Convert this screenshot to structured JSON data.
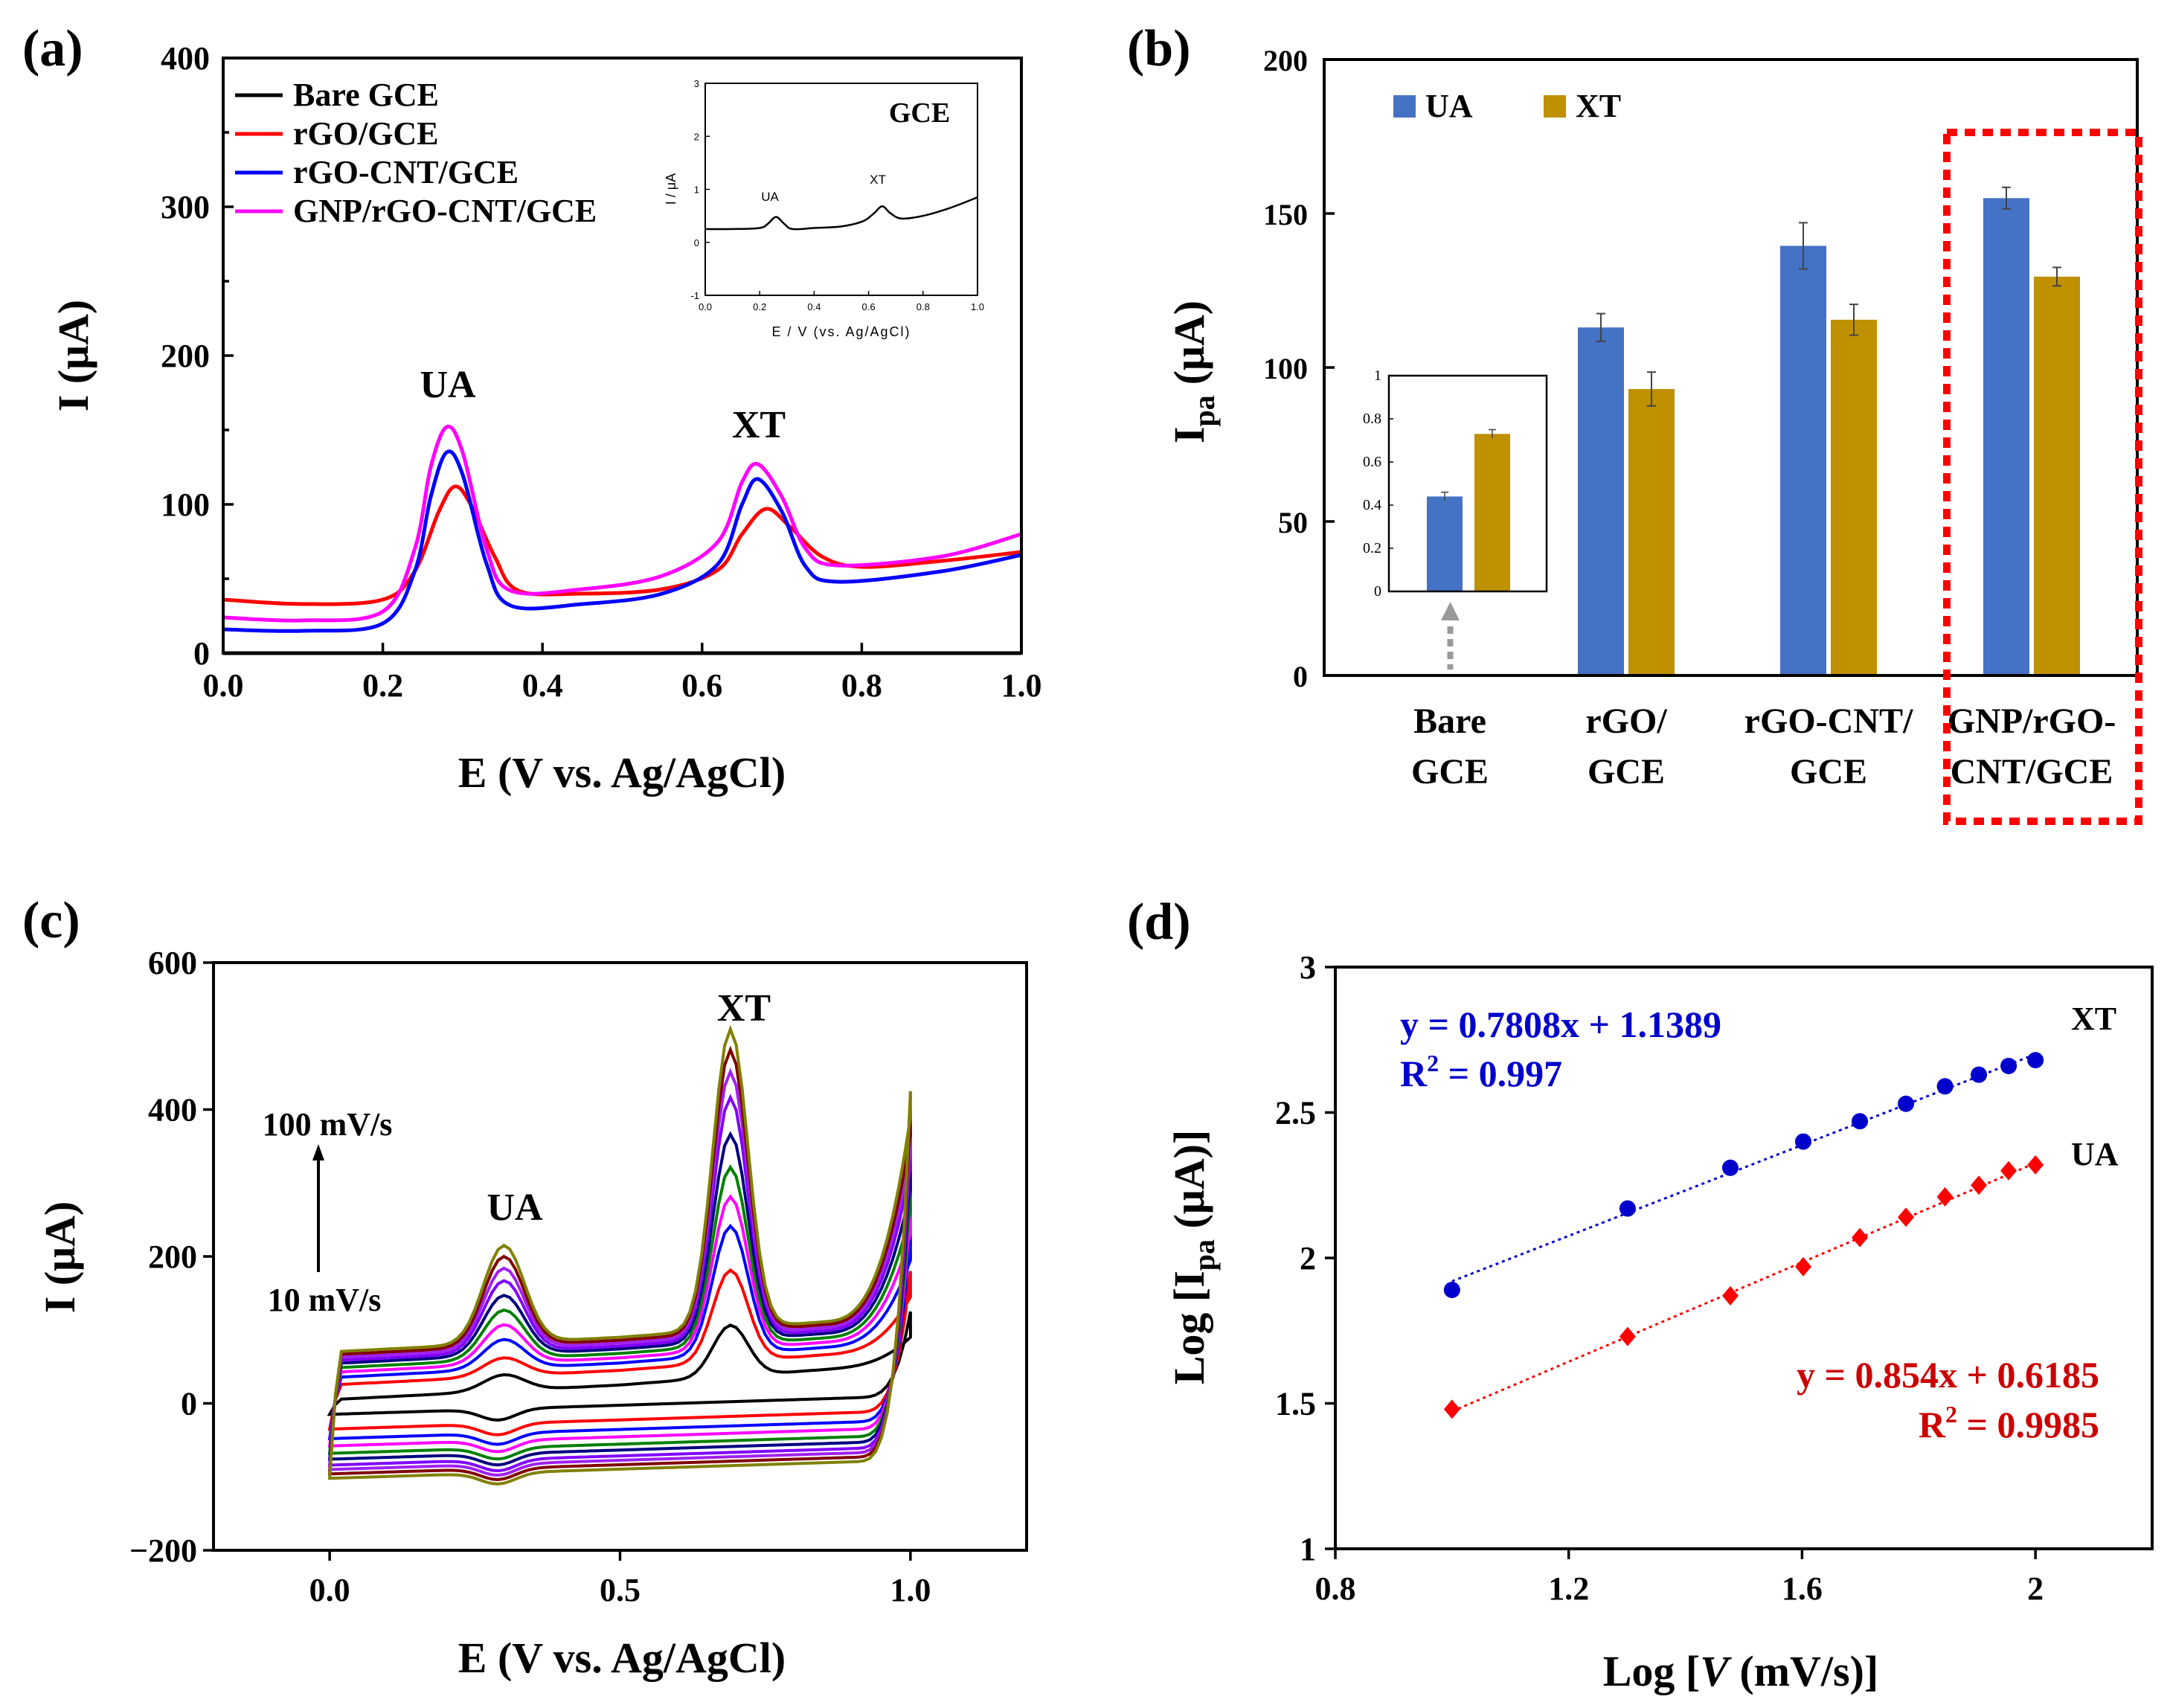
{
  "panels": {
    "a": {
      "label": "(a)"
    },
    "b": {
      "label": "(b)"
    },
    "c": {
      "label": "(c)"
    },
    "d": {
      "label": "(d)"
    }
  },
  "chart_data": [
    {
      "panel": "a",
      "type": "line",
      "title": "",
      "xlabel": "E (V vs. Ag/AgCl)",
      "ylabel": "I (μA)",
      "xlim": [
        0,
        1
      ],
      "ylim": [
        0,
        400
      ],
      "xticks": [
        "0.0",
        "0.2",
        "0.4",
        "0.6",
        "0.8",
        "1.0"
      ],
      "yticks": [
        "0",
        "100",
        "200",
        "300",
        "400"
      ],
      "legend_position": "top-left",
      "annotations": [
        "UA",
        "XT"
      ],
      "series": [
        {
          "name": "Bare GCE",
          "color": "#000000",
          "x": [
            0,
            0.2,
            0.4,
            0.6,
            0.8,
            1.0
          ],
          "y": [
            0,
            0,
            0,
            0,
            0,
            0
          ]
        },
        {
          "name": "rGO/GCE",
          "color": "#ff0000",
          "x": [
            0,
            0.1,
            0.2,
            0.24,
            0.27,
            0.29,
            0.31,
            0.34,
            0.37,
            0.45,
            0.55,
            0.62,
            0.65,
            0.68,
            0.71,
            0.75,
            0.8,
            0.9,
            1.0
          ],
          "y": [
            36,
            33,
            36,
            55,
            95,
            112,
            100,
            65,
            42,
            40,
            43,
            56,
            80,
            97,
            85,
            65,
            58,
            62,
            68
          ]
        },
        {
          "name": "rGO-CNT/GCE",
          "color": "#0000ff",
          "x": [
            0,
            0.1,
            0.2,
            0.24,
            0.26,
            0.28,
            0.3,
            0.33,
            0.36,
            0.45,
            0.55,
            0.62,
            0.65,
            0.67,
            0.7,
            0.73,
            0.77,
            0.9,
            1.0
          ],
          "y": [
            16,
            15,
            20,
            55,
            105,
            135,
            120,
            60,
            32,
            33,
            40,
            60,
            100,
            117,
            95,
            58,
            48,
            55,
            66
          ]
        },
        {
          "name": "GNP/rGO-CNT/GCE",
          "color": "#ff00ff",
          "x": [
            0,
            0.1,
            0.2,
            0.24,
            0.26,
            0.28,
            0.3,
            0.33,
            0.36,
            0.45,
            0.55,
            0.62,
            0.65,
            0.67,
            0.7,
            0.73,
            0.77,
            0.9,
            1.0
          ],
          "y": [
            24,
            22,
            28,
            70,
            125,
            152,
            135,
            70,
            42,
            43,
            52,
            75,
            115,
            127,
            105,
            70,
            59,
            65,
            80
          ]
        }
      ],
      "inset": {
        "type": "line",
        "title": "GCE",
        "xlabel": "E / V (vs. Ag/AgCl)",
        "ylabel": "I / μA",
        "xlim": [
          0,
          1
        ],
        "ylim": [
          -1,
          3
        ],
        "xticks": [
          "0.0",
          "0.2",
          "0.4",
          "0.6",
          "0.8",
          "1.0"
        ],
        "yticks": [
          "-1",
          "0",
          "1",
          "2",
          "3"
        ],
        "annotations": [
          "UA",
          "XT"
        ],
        "x": [
          0,
          0.1,
          0.2,
          0.23,
          0.26,
          0.29,
          0.32,
          0.4,
          0.5,
          0.58,
          0.62,
          0.65,
          0.68,
          0.72,
          0.8,
          0.9,
          1.0
        ],
        "y": [
          0.25,
          0.25,
          0.27,
          0.35,
          0.48,
          0.35,
          0.25,
          0.27,
          0.3,
          0.4,
          0.55,
          0.68,
          0.55,
          0.45,
          0.5,
          0.65,
          0.85
        ]
      }
    },
    {
      "panel": "b",
      "type": "bar",
      "title": "",
      "xlabel": "",
      "ylabel": "I",
      "ylabel_sub": "pa",
      "ylabel_unit": "(μA)",
      "ylim": [
        0,
        200
      ],
      "yticks": [
        "0",
        "50",
        "100",
        "150",
        "200"
      ],
      "categories": [
        [
          "Bare",
          "GCE"
        ],
        [
          "rGO/",
          "GCE"
        ],
        [
          "rGO-CNT/",
          "GCE"
        ],
        [
          "GNP/rGO-",
          "CNT/GCE"
        ]
      ],
      "series": [
        {
          "name": "UA",
          "color": "#4472c4",
          "values": [
            0.44,
            113,
            139.5,
            155
          ],
          "errors": [
            0.02,
            4.5,
            7.5,
            3.5
          ]
        },
        {
          "name": "XT",
          "color": "#bf9000",
          "values": [
            0.73,
            93,
            115.5,
            129.5
          ],
          "errors": [
            0.02,
            5.5,
            5,
            3
          ]
        }
      ],
      "legend_position": "top-left",
      "highlight_category": 3,
      "inset": {
        "type": "bar",
        "ylim": [
          0,
          1
        ],
        "yticks": [
          "0",
          "0.2",
          "0.4",
          "0.6",
          "0.8",
          "1"
        ],
        "values": [
          0.44,
          0.73
        ],
        "errors": [
          0.02,
          0.02
        ]
      }
    },
    {
      "panel": "c",
      "type": "line",
      "title": "",
      "xlabel": "E (V vs. Ag/AgCl)",
      "ylabel": "I (μA)",
      "xlim": [
        -0.2,
        1.2
      ],
      "ylim": [
        -200,
        600
      ],
      "xticks": [
        "0.0",
        "0.5",
        "1.0"
      ],
      "yticks": [
        "−200",
        "0",
        "200",
        "400",
        "600"
      ],
      "annotations": [
        "UA",
        "XT",
        "100 mV/s",
        "10 mV/s"
      ],
      "scan_rates_mV_s": [
        10,
        20,
        30,
        40,
        50,
        60,
        70,
        80,
        90,
        100
      ],
      "colors": [
        "#000000",
        "#ff0000",
        "#0000ff",
        "#ff00ff",
        "#008000",
        "#000080",
        "#8000ff",
        "#a020f0",
        "#800000",
        "#808000"
      ],
      "ua_peak": [
        27,
        50,
        75,
        95,
        115,
        135,
        155,
        172,
        188,
        203
      ],
      "xt_peak": [
        75,
        150,
        210,
        250,
        290,
        335,
        385,
        420,
        450,
        478
      ],
      "anodic_baseline": [
        5,
        25,
        35,
        42,
        48,
        54,
        58,
        62,
        66,
        70
      ],
      "cathodic_baseline": [
        -15,
        -35,
        -48,
        -58,
        -68,
        -76,
        -84,
        -90,
        -96,
        -102
      ],
      "end_current": [
        100,
        155,
        205,
        240,
        270,
        300,
        330,
        350,
        375,
        400
      ]
    },
    {
      "panel": "d",
      "type": "scatter",
      "title": "",
      "xlabel": "Log [V (mV/s)]",
      "ylabel": "Log [Ipa (μA)]",
      "xlim": [
        0.8,
        2.2
      ],
      "ylim": [
        1,
        3
      ],
      "xticks": [
        "0.8",
        "1.2",
        "1.6",
        "2"
      ],
      "yticks": [
        "1",
        "1.5",
        "2",
        "2.5",
        "3"
      ],
      "series": [
        {
          "name": "XT",
          "color": "#0000cc",
          "marker": "circle",
          "x": [
            1.0,
            1.301,
            1.477,
            1.602,
            1.699,
            1.778,
            1.845,
            1.903,
            1.954,
            2.0
          ],
          "y": [
            1.89,
            2.17,
            2.31,
            2.4,
            2.47,
            2.53,
            2.59,
            2.63,
            2.66,
            2.68
          ],
          "fit": {
            "slope": 0.7808,
            "intercept": 1.1389
          },
          "equation": "y = 0.7808x + 1.1389",
          "r2_label": "R",
          "r2_value": " = 0.997"
        },
        {
          "name": "UA",
          "color": "#ff0000",
          "marker": "diamond",
          "x": [
            1.0,
            1.301,
            1.477,
            1.602,
            1.699,
            1.778,
            1.845,
            1.903,
            1.954,
            2.0
          ],
          "y": [
            1.48,
            1.73,
            1.87,
            1.97,
            2.07,
            2.14,
            2.21,
            2.25,
            2.3,
            2.32
          ],
          "fit": {
            "slope": 0.854,
            "intercept": 0.6185
          },
          "equation": "y = 0.854x + 0.6185",
          "r2_label": "R",
          "r2_value": " = 0.9985"
        }
      ]
    }
  ]
}
